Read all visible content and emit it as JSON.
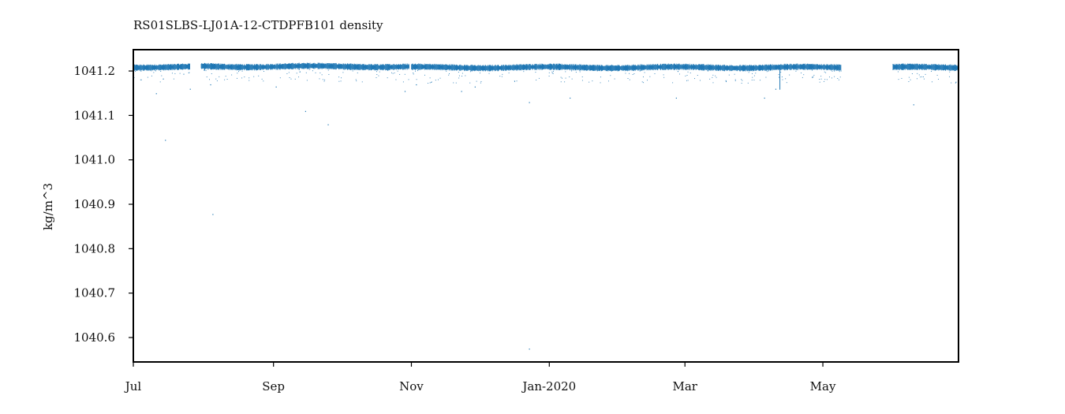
{
  "chart_data": {
    "type": "scatter",
    "title": "RS01SLBS-LJ01A-12-CTDPFB101 density",
    "xlabel": "",
    "ylabel": "kg/m^3",
    "xlim": [
      "2019-07-01",
      "2020-06-30"
    ],
    "ylim": [
      1040.545,
      1041.248
    ],
    "x_ticks": [
      {
        "date": "2019-07-01",
        "label": "Jul"
      },
      {
        "date": "2019-09-01",
        "label": "Sep"
      },
      {
        "date": "2019-11-01",
        "label": "Nov"
      },
      {
        "date": "2020-01-01",
        "label": "Jan-2020"
      },
      {
        "date": "2020-03-01",
        "label": "Mar"
      },
      {
        "date": "2020-05-01",
        "label": "May"
      }
    ],
    "y_ticks": [
      1041.2,
      1041.1,
      1041.0,
      1040.9,
      1040.8,
      1040.7,
      1040.6
    ],
    "y_tick_labels": [
      "1041.2",
      "1041.1",
      "1041.0",
      "1040.9",
      "1040.8",
      "1040.7",
      "1040.6"
    ],
    "grid": false,
    "legend": "none",
    "series_color": "#1f77b4",
    "data_segments": [
      {
        "start": "2019-07-01",
        "end": "2019-07-26",
        "mean": 1041.209
      },
      {
        "start": "2019-07-31",
        "end": "2019-10-31",
        "mean": 1041.21
      },
      {
        "start": "2019-11-01",
        "end": "2020-05-09",
        "mean": 1041.208
      },
      {
        "start": "2020-06-01",
        "end": "2020-06-30",
        "mean": 1041.208
      }
    ],
    "outliers": [
      {
        "x": "2019-07-15",
        "y": 1041.045
      },
      {
        "x": "2019-07-11",
        "y": 1041.15
      },
      {
        "x": "2019-07-26",
        "y": 1041.16
      },
      {
        "x": "2019-08-05",
        "y": 1040.878
      },
      {
        "x": "2019-08-04",
        "y": 1041.17
      },
      {
        "x": "2019-09-02",
        "y": 1041.165
      },
      {
        "x": "2019-09-15",
        "y": 1041.11
      },
      {
        "x": "2019-09-25",
        "y": 1041.08
      },
      {
        "x": "2019-10-29",
        "y": 1041.155
      },
      {
        "x": "2019-11-03",
        "y": 1041.17
      },
      {
        "x": "2019-11-23",
        "y": 1041.155
      },
      {
        "x": "2019-11-29",
        "y": 1041.165
      },
      {
        "x": "2019-12-23",
        "y": 1040.575
      },
      {
        "x": "2019-12-23",
        "y": 1041.13
      },
      {
        "x": "2020-01-10",
        "y": 1041.14
      },
      {
        "x": "2020-02-26",
        "y": 1041.14
      },
      {
        "x": "2020-04-05",
        "y": 1041.14
      },
      {
        "x": "2020-04-10",
        "y": 1041.16
      },
      {
        "x": "2020-06-10",
        "y": 1041.125
      }
    ]
  }
}
